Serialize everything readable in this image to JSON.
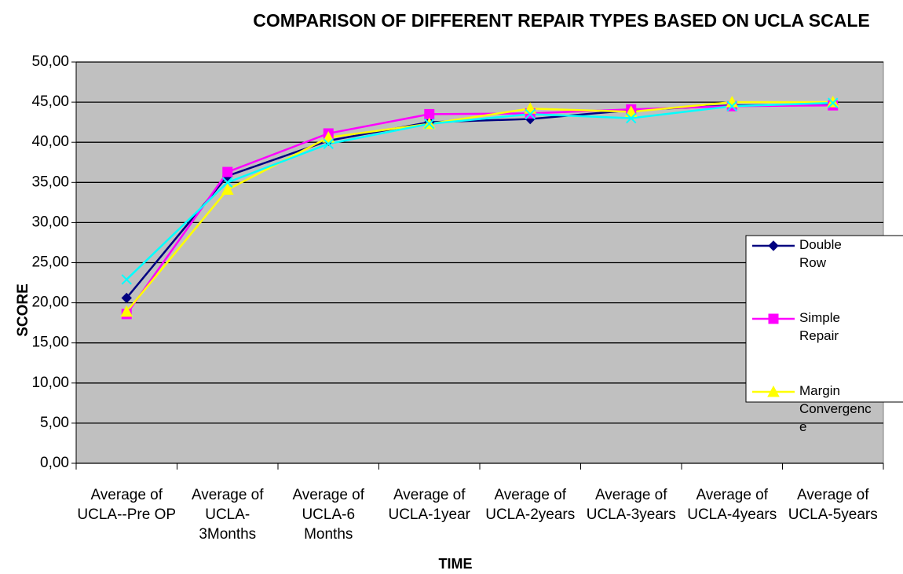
{
  "chart_data": {
    "type": "line",
    "title": "COMPARISON OF DIFFERENT REPAIR TYPES  BASED ON UCLA SCALE",
    "x_label": "TIME",
    "y_label": "SCORE",
    "categories": [
      "Average of UCLA--Pre OP",
      "Average of UCLA-3Months",
      "Average of UCLA-6 Months",
      "Average of UCLA-1year",
      "Average of UCLA-2years",
      "Average of UCLA-3years",
      "Average of UCLA-4years",
      "Average of UCLA-5years"
    ],
    "series": [
      {
        "name": "Double Row",
        "color": "#000080",
        "marker": "diamond",
        "values": [
          20.6,
          35.8,
          40.2,
          42.5,
          42.9,
          44.0,
          44.6,
          44.7
        ]
      },
      {
        "name": "Simple Repair",
        "color": "#ff00ff",
        "marker": "square",
        "values": [
          18.6,
          36.3,
          41.1,
          43.5,
          43.6,
          44.1,
          44.5,
          44.6
        ]
      },
      {
        "name": "Margin Convergence",
        "color": "#ffff00",
        "marker": "triangle",
        "values": [
          18.9,
          34.1,
          40.6,
          42.3,
          44.2,
          43.8,
          45.0,
          45.0
        ]
      },
      {
        "color": "#00ffff",
        "marker": "x",
        "values": [
          22.9,
          35.0,
          39.8,
          42.3,
          43.5,
          43.0,
          44.5,
          44.9
        ]
      }
    ],
    "ylim": [
      0,
      50
    ],
    "yticks": [
      {
        "value": 0,
        "label": "0,00"
      },
      {
        "value": 5,
        "label": "5,00"
      },
      {
        "value": 10,
        "label": "10,00"
      },
      {
        "value": 15,
        "label": "15,00"
      },
      {
        "value": 20,
        "label": "20,00"
      },
      {
        "value": 25,
        "label": "25,00"
      },
      {
        "value": 30,
        "label": "30,00"
      },
      {
        "value": 35,
        "label": "35,00"
      },
      {
        "value": 40,
        "label": "40,00"
      },
      {
        "value": 45,
        "label": "45,00"
      },
      {
        "value": 50,
        "label": "50,00"
      }
    ],
    "grid": true,
    "plot_background": "#c0c0c0",
    "legend": "right"
  }
}
